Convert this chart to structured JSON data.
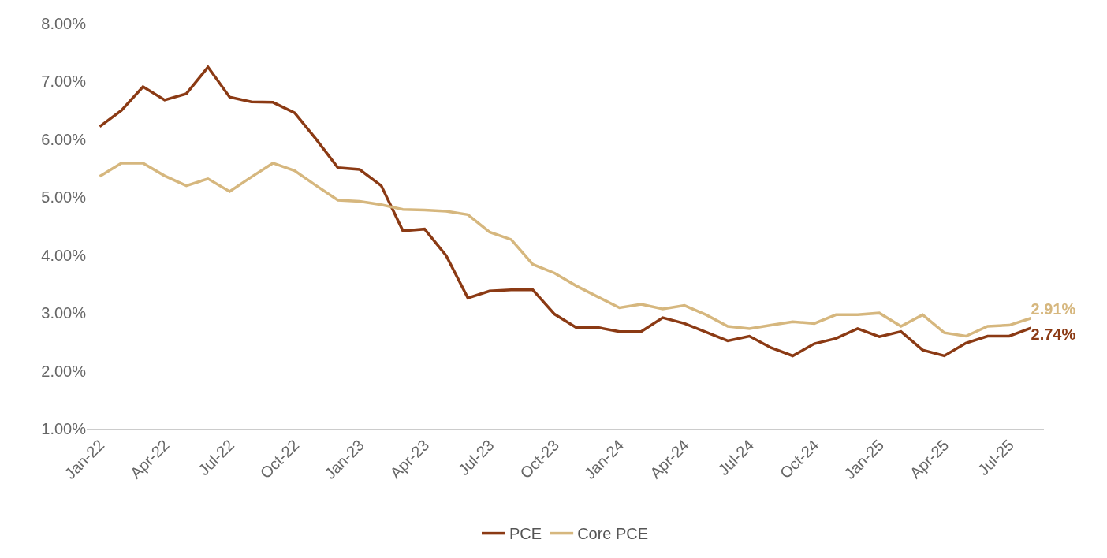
{
  "chart_data": {
    "type": "line",
    "categories": [
      "Jan-22",
      null,
      null,
      "Apr-22",
      null,
      null,
      "Jul-22",
      null,
      null,
      "Oct-22",
      null,
      null,
      "Jan-23",
      null,
      null,
      "Apr-23",
      null,
      null,
      "Jul-23",
      null,
      null,
      "Oct-23",
      null,
      null,
      "Jan-24",
      null,
      null,
      "Apr-24",
      null,
      null,
      "Jul-24",
      null,
      null,
      "Oct-24",
      null,
      null,
      "Jan-25",
      null,
      null,
      "Apr-25",
      null,
      null,
      "Jul-25",
      null
    ],
    "series": [
      {
        "name": "PCE",
        "color": "#8b3a14",
        "values": [
          6.22,
          6.5,
          6.91,
          6.68,
          6.79,
          7.25,
          6.73,
          6.65,
          6.64,
          6.46,
          6.0,
          5.51,
          5.48,
          5.2,
          4.42,
          4.45,
          3.99,
          3.26,
          3.38,
          3.4,
          3.4,
          2.98,
          2.75,
          2.75,
          2.68,
          2.68,
          2.92,
          2.82,
          2.67,
          2.52,
          2.6,
          2.4,
          2.26,
          2.47,
          2.56,
          2.73,
          2.59,
          2.68,
          2.36,
          2.26,
          2.48,
          2.6,
          2.6,
          2.74
        ],
        "value_labels": [
          null,
          null,
          null,
          null,
          null,
          null,
          null,
          null,
          null,
          null,
          null,
          null,
          null,
          null,
          null,
          null,
          null,
          null,
          null,
          null,
          null,
          null,
          null,
          null,
          null,
          null,
          null,
          null,
          null,
          null,
          null,
          null,
          null,
          null,
          null,
          null,
          null,
          null,
          null,
          null,
          null,
          null,
          null,
          "2.74%"
        ]
      },
      {
        "name": "Core PCE",
        "color": "#d6b77e",
        "values": [
          5.36,
          5.59,
          5.59,
          5.37,
          5.2,
          5.32,
          5.1,
          5.35,
          5.59,
          5.46,
          5.2,
          4.95,
          4.93,
          4.87,
          4.79,
          4.78,
          4.76,
          4.7,
          4.4,
          4.27,
          3.84,
          3.69,
          3.47,
          3.28,
          3.09,
          3.15,
          3.07,
          3.13,
          2.97,
          2.77,
          2.73,
          2.79,
          2.85,
          2.82,
          2.97,
          2.97,
          3.0,
          2.77,
          2.97,
          2.66,
          2.6,
          2.77,
          2.79,
          2.91
        ],
        "value_labels": [
          null,
          null,
          null,
          null,
          null,
          null,
          null,
          null,
          null,
          null,
          null,
          null,
          null,
          null,
          null,
          null,
          null,
          null,
          null,
          null,
          null,
          null,
          null,
          null,
          null,
          null,
          null,
          null,
          null,
          null,
          null,
          null,
          null,
          null,
          null,
          null,
          null,
          null,
          null,
          null,
          null,
          null,
          null,
          "2.91%"
        ]
      }
    ],
    "ylim": [
      1,
      8
    ],
    "yticks": [
      {
        "value": 1,
        "label": "1.00%"
      },
      {
        "value": 2,
        "label": "2.00%"
      },
      {
        "value": 3,
        "label": "3.00%"
      },
      {
        "value": 4,
        "label": "4.00%"
      },
      {
        "value": 5,
        "label": "5.00%"
      },
      {
        "value": 6,
        "label": "6.00%"
      },
      {
        "value": 7,
        "label": "7.00%"
      },
      {
        "value": 8,
        "label": "8.00%"
      }
    ],
    "grid": false,
    "legend": "bottom",
    "marker": "none",
    "line_style": "solid"
  }
}
